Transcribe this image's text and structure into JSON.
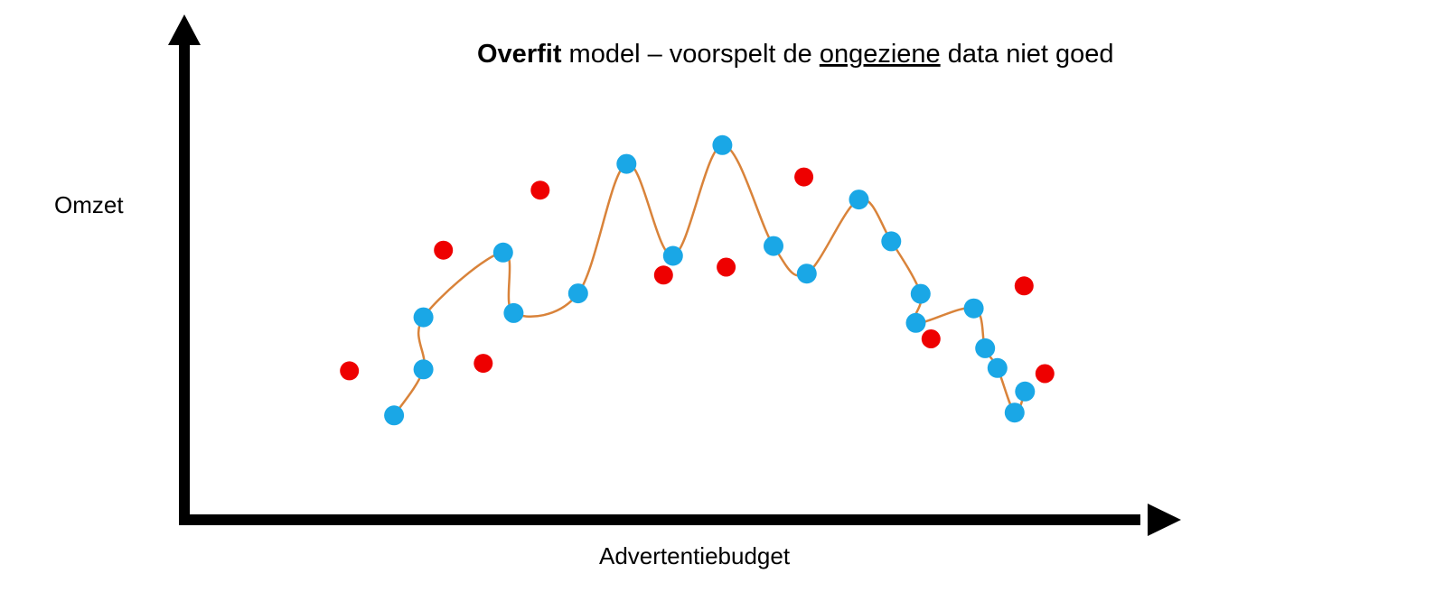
{
  "title": {
    "bold": "Overfit",
    "middle": " model – voorspelt de ",
    "underlined": "ongeziene",
    "end": " data niet goed"
  },
  "labels": {
    "y_axis": "Omzet",
    "x_axis": "Advertentiebudget"
  },
  "colors": {
    "training_points": "#1AA7E6",
    "unseen_points": "#EE0000",
    "fit_line": "#D9833A",
    "axes": "#000000"
  },
  "chart_data": {
    "type": "scatter",
    "xlabel": "Advertentiebudget",
    "ylabel": "Omzet",
    "xlim": [
      0,
      100
    ],
    "ylim": [
      0,
      100
    ],
    "grid": false,
    "series": [
      {
        "role": "training",
        "color": "#1AA7E6",
        "connected": true,
        "x": [
          22.1,
          25.2,
          25.2,
          33.6,
          34.7,
          41.5,
          46.6,
          51.5,
          56.7,
          62.1,
          65.6,
          71.1,
          74.5,
          77.6,
          77.1,
          83.2,
          84.4,
          85.7,
          87.5,
          88.6
        ],
        "y": [
          21.1,
          30.9,
          42.0,
          55.8,
          42.9,
          47.1,
          74.7,
          55.1,
          78.7,
          57.2,
          51.3,
          67.1,
          58.2,
          47.0,
          40.8,
          43.9,
          35.4,
          31.2,
          21.7,
          26.2
        ]
      },
      {
        "role": "unseen",
        "color": "#EE0000",
        "connected": false,
        "x": [
          17.4,
          27.3,
          31.5,
          37.5,
          50.5,
          57.1,
          65.3,
          78.7,
          88.5,
          90.7
        ],
        "y": [
          30.6,
          56.3,
          32.2,
          69.1,
          51.0,
          52.7,
          71.9,
          37.4,
          48.7,
          30.0
        ]
      }
    ]
  }
}
